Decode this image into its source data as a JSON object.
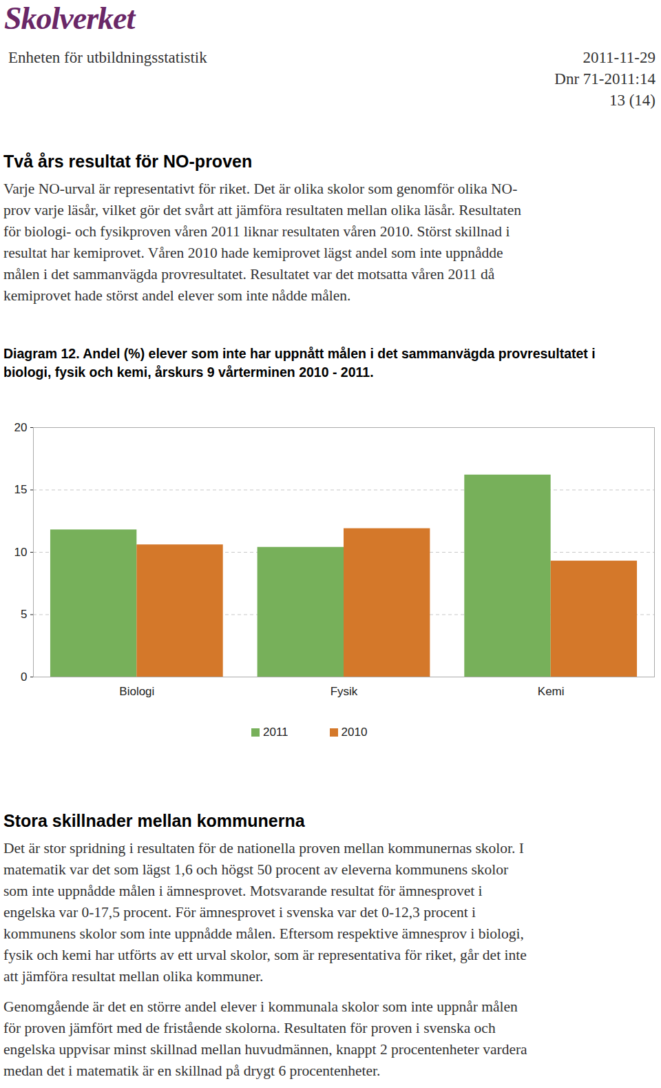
{
  "header": {
    "logo": "Skolverket",
    "unit": "Enheten för utbildningsstatistik",
    "date": "2011-11-29",
    "dnr": "Dnr 71-2011:14",
    "page": "13 (14)"
  },
  "section1": {
    "heading": "Två års resultat för NO-proven",
    "paragraphs": [
      [
        "Varje NO-urval är representativt för riket. Det är olika skolor som genomför olika NO-",
        "prov varje läsår, vilket gör det svårt att jämföra resultaten mellan olika läsår. Resultaten",
        "för biologi- och fysikproven våren 2011 liknar resultaten våren 2010. Störst skillnad i",
        "resultat har kemiprovet. Våren 2010 hade kemiprovet lägst andel som inte uppnådde",
        "målen i det sammanvägda provresultatet. Resultatet var det motsatta våren 2011 då",
        "kemiprovet hade störst andel elever som inte nådde målen."
      ]
    ]
  },
  "chart_data": {
    "type": "bar",
    "title": "Diagram 12. Andel (%) elever som inte har uppnått målen i det sammanvägda provresultatet i biologi, fysik och kemi, årskurs 9 vårterminen 2010 - 2011.",
    "categories": [
      "Biologi",
      "Fysik",
      "Kemi"
    ],
    "series": [
      {
        "name": "2011",
        "color": "#77b05a",
        "values": [
          11.8,
          10.4,
          16.2
        ]
      },
      {
        "name": "2010",
        "color": "#d4782a",
        "values": [
          10.6,
          11.9,
          9.3
        ]
      }
    ],
    "ylim": [
      0,
      20
    ],
    "yticks": [
      0,
      5,
      10,
      15,
      20
    ],
    "grid": true,
    "legend": "bottom"
  },
  "section2": {
    "heading": "Stora skillnader mellan kommunerna",
    "paragraphs": [
      [
        "Det är stor spridning i resultaten för de nationella proven mellan kommunernas skolor. I",
        "matematik var det som lägst 1,6 och högst 50 procent av eleverna kommunens skolor",
        "som inte uppnådde målen i ämnesprovet. Motsvarande resultat för ämnesprovet i",
        "engelska var 0-17,5 procent. För ämnesprovet i svenska var det 0-12,3 procent i",
        "kommunens skolor som inte uppnådde målen. Eftersom respektive ämnesprov i biologi,",
        "fysik och kemi har utförts av ett urval skolor, som är representativa för riket, går det inte",
        "att jämföra resultat mellan olika kommuner."
      ],
      [
        "Genomgående är det en större andel elever i kommunala skolor som inte uppnår målen",
        "för proven jämfört med de fristående skolorna. Resultaten för proven i svenska och",
        "engelska uppvisar minst skillnad mellan huvudmännen, knappt 2 procentenheter vardera",
        "medan det i matematik är en skillnad på drygt 6 procentenheter."
      ]
    ]
  }
}
